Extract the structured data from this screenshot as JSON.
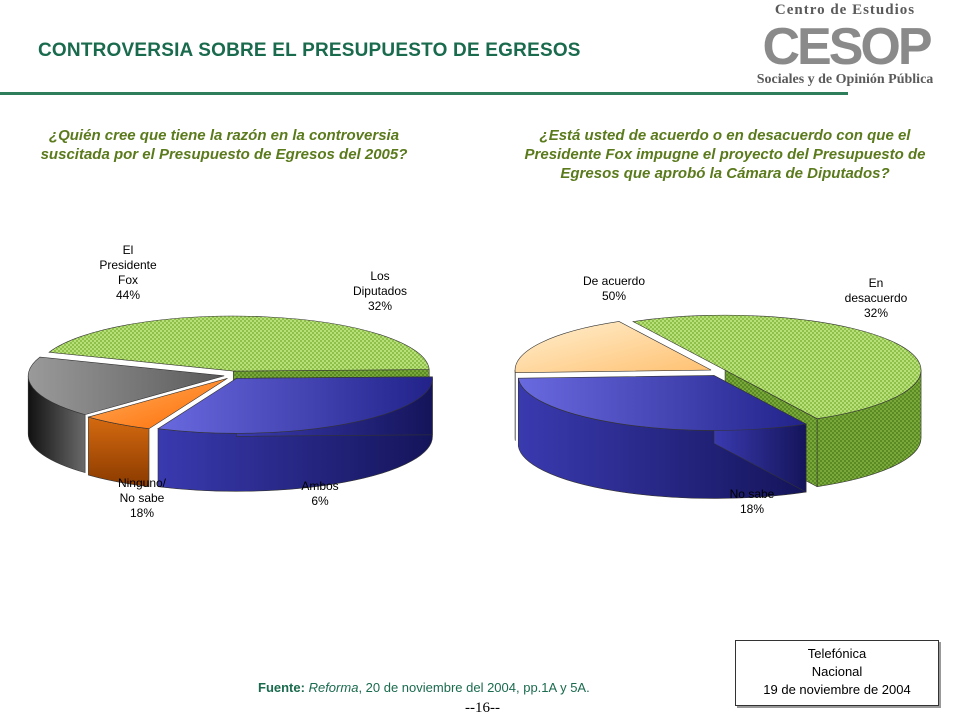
{
  "header": {
    "title": "CONTROVERSIA SOBRE EL PRESUPUESTO DE EGRESOS",
    "logo_top": "Centro de Estudios",
    "logo_word": "CESOP",
    "logo_bottom": "Sociales y de Opinión Pública"
  },
  "colors": {
    "title": "#1a6b4e",
    "question": "#5a7a1c",
    "rule": "#2e7d5b",
    "green_slice": "#a8d66a",
    "blue_slice": "#2c2c9e",
    "orange_slice": "#ff7f00",
    "gray_slice": "#6e6e6e",
    "peach_slice": "#ffd9a0"
  },
  "chart_data": [
    {
      "type": "pie",
      "title": "¿Quién cree que tiene la razón en la controversia suscitada por el Presupuesto de Egresos del 2005?",
      "slices": [
        {
          "label_lines": [
            "El",
            "Presidente",
            "Fox",
            "44%"
          ],
          "name": "El Presidente Fox",
          "value": 44,
          "color": "green"
        },
        {
          "label_lines": [
            "Los",
            "Diputados",
            "32%"
          ],
          "name": "Los Diputados",
          "value": 32,
          "color": "blue"
        },
        {
          "label_lines": [
            "Ambos",
            "6%"
          ],
          "name": "Ambos",
          "value": 6,
          "color": "orange"
        },
        {
          "label_lines": [
            "Ninguno/",
            "No sabe",
            "18%"
          ],
          "name": "Ninguno/ No sabe",
          "value": 18,
          "color": "gray"
        }
      ]
    },
    {
      "type": "pie",
      "title": "¿Está usted de acuerdo o en desacuerdo con que el Presidente Fox impugne el proyecto del Presupuesto de Egresos que aprobó la Cámara de Diputados?",
      "slices": [
        {
          "label_lines": [
            "De acuerdo",
            "50%"
          ],
          "name": "De acuerdo",
          "value": 50,
          "color": "green"
        },
        {
          "label_lines": [
            "En",
            "desacuerdo",
            "32%"
          ],
          "name": "En desacuerdo",
          "value": 32,
          "color": "blue"
        },
        {
          "label_lines": [
            "No sabe",
            "18%"
          ],
          "name": "No sabe",
          "value": 18,
          "color": "peach"
        }
      ]
    }
  ],
  "footer": {
    "source_label": "Fuente:",
    "source_pub": "Reforma",
    "source_rest": ", 20 de noviembre del 2004, pp.1A y 5A.",
    "page_number": "--16--"
  },
  "note": {
    "line1": "Telefónica",
    "line2": "Nacional",
    "line3": "19 de noviembre de 2004"
  }
}
